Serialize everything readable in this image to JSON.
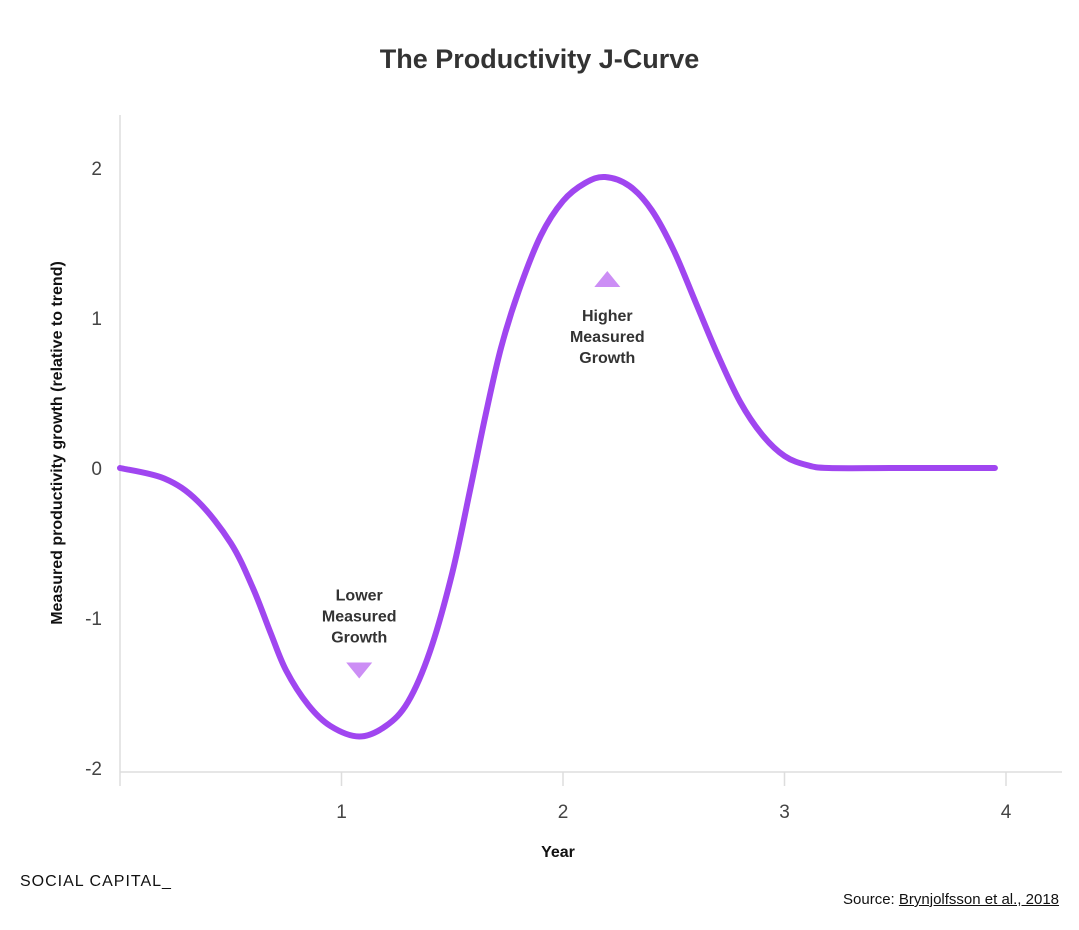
{
  "chart_data": {
    "type": "line",
    "title": "The Productivity J-Curve",
    "xlabel": "Year",
    "ylabel": "Measured productivity growth (relative to trend)",
    "xlim": [
      0,
      4.25
    ],
    "ylim": [
      -2,
      2.35
    ],
    "x_ticks": [
      "1",
      "2",
      "3",
      "4"
    ],
    "y_ticks": [
      "2",
      "1",
      "0",
      "-1",
      "-2"
    ],
    "grid": false,
    "series": [
      {
        "color": "#a046f0",
        "points": [
          [
            0,
            0
          ],
          [
            0.2,
            -0.07
          ],
          [
            0.35,
            -0.22
          ],
          [
            0.5,
            -0.5
          ],
          [
            0.6,
            -0.8
          ],
          [
            0.68,
            -1.1
          ],
          [
            0.75,
            -1.35
          ],
          [
            0.85,
            -1.58
          ],
          [
            0.95,
            -1.72
          ],
          [
            1.08,
            -1.79
          ],
          [
            1.2,
            -1.72
          ],
          [
            1.3,
            -1.56
          ],
          [
            1.4,
            -1.22
          ],
          [
            1.5,
            -0.7
          ],
          [
            1.58,
            -0.15
          ],
          [
            1.65,
            0.35
          ],
          [
            1.72,
            0.8
          ],
          [
            1.8,
            1.18
          ],
          [
            1.9,
            1.55
          ],
          [
            2.0,
            1.78
          ],
          [
            2.1,
            1.9
          ],
          [
            2.19,
            1.94
          ],
          [
            2.3,
            1.88
          ],
          [
            2.4,
            1.72
          ],
          [
            2.5,
            1.45
          ],
          [
            2.6,
            1.1
          ],
          [
            2.7,
            0.75
          ],
          [
            2.8,
            0.44
          ],
          [
            2.9,
            0.22
          ],
          [
            3.0,
            0.08
          ],
          [
            3.1,
            0.02
          ],
          [
            3.2,
            0
          ],
          [
            3.5,
            0
          ],
          [
            3.95,
            0
          ]
        ]
      }
    ],
    "annotations": [
      {
        "text": [
          "Lower",
          "Measured",
          "Growth"
        ],
        "x": 1.08,
        "y": -1.35,
        "marker": "triangle-down"
      },
      {
        "text": [
          "Higher",
          "Measured",
          "Growth"
        ],
        "x": 2.2,
        "y": 1.26,
        "marker": "triangle-up"
      }
    ]
  },
  "colors": {
    "line": "#a046f0",
    "marker": "#cc8ef5",
    "axis": "#dddddd"
  },
  "footer": {
    "brand": "SOCIAL CAPITAL_",
    "source_label": "Source:",
    "source_link": "Brynjolfsson et al., 2018"
  }
}
